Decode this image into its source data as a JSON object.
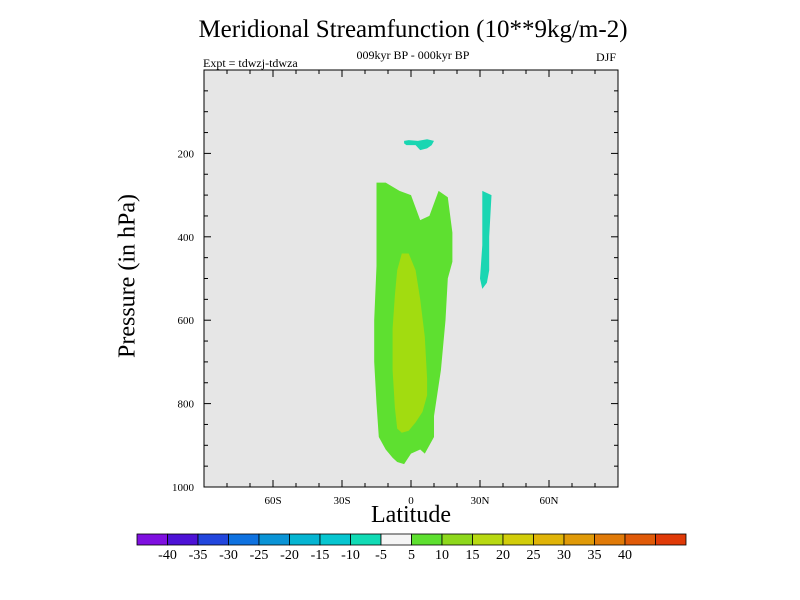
{
  "chart_data": {
    "type": "contour",
    "title": "Meridional Streamfunction (10**9kg/m-2)",
    "subtitle": "009kyr BP - 000kyr BP",
    "left_note": "Expt = tdwzj-tdwza",
    "right_note": "DJF",
    "xlabel": "Latitude",
    "ylabel": "Pressure (in hPa)",
    "xlim": [
      -90,
      90
    ],
    "ylim": [
      1000,
      0
    ],
    "x_ticks": [
      {
        "value": -60,
        "label": "60S"
      },
      {
        "value": -30,
        "label": "30S"
      },
      {
        "value": 0,
        "label": "0"
      },
      {
        "value": 30,
        "label": "30N"
      },
      {
        "value": 60,
        "label": "60N"
      }
    ],
    "y_ticks": [
      {
        "value": 200,
        "label": "200"
      },
      {
        "value": 400,
        "label": "400"
      },
      {
        "value": 600,
        "label": "600"
      },
      {
        "value": 800,
        "label": "800"
      },
      {
        "value": 1000,
        "label": "1000"
      }
    ],
    "background_color": "#e6e6e6",
    "regions": [
      {
        "name": "cell-5-to-10",
        "fill": "#5ee030",
        "points": [
          [
            -15,
            270
          ],
          [
            -11,
            270
          ],
          [
            -5,
            290
          ],
          [
            0,
            300
          ],
          [
            2,
            330
          ],
          [
            4,
            360
          ],
          [
            8,
            350
          ],
          [
            12,
            290
          ],
          [
            16,
            305
          ],
          [
            18,
            390
          ],
          [
            18,
            460
          ],
          [
            16,
            500
          ],
          [
            15,
            600
          ],
          [
            13,
            720
          ],
          [
            10,
            830
          ],
          [
            10,
            880
          ],
          [
            6,
            920
          ],
          [
            4,
            910
          ],
          [
            0,
            920
          ],
          [
            -3,
            945
          ],
          [
            -6,
            940
          ],
          [
            -8,
            930
          ],
          [
            -11,
            910
          ],
          [
            -14,
            880
          ],
          [
            -15,
            800
          ],
          [
            -16,
            700
          ],
          [
            -16,
            600
          ],
          [
            -15,
            470
          ],
          [
            -15,
            370
          ]
        ]
      },
      {
        "name": "cell-10-to-15",
        "fill": "#a2dc10",
        "points": [
          [
            -4,
            440
          ],
          [
            -1,
            440
          ],
          [
            2,
            480
          ],
          [
            4,
            550
          ],
          [
            6,
            640
          ],
          [
            7,
            740
          ],
          [
            7,
            780
          ],
          [
            5,
            820
          ],
          [
            2,
            845
          ],
          [
            -1,
            865
          ],
          [
            -4,
            870
          ],
          [
            -6,
            860
          ],
          [
            -7,
            810
          ],
          [
            -8,
            720
          ],
          [
            -8,
            620
          ],
          [
            -7,
            540
          ],
          [
            -6,
            480
          ]
        ]
      },
      {
        "name": "cell-neg10-to-neg5-upper",
        "fill": "#1ad6b2",
        "points": [
          [
            -3,
            170
          ],
          [
            -1,
            168
          ],
          [
            3,
            170
          ],
          [
            7,
            166
          ],
          [
            10,
            170
          ],
          [
            9,
            180
          ],
          [
            7,
            188
          ],
          [
            4,
            192
          ],
          [
            2,
            180
          ],
          [
            -2,
            180
          ],
          [
            -3,
            176
          ]
        ]
      },
      {
        "name": "cell-neg10-to-neg5-north",
        "fill": "#1ad6b2",
        "points": [
          [
            31,
            290
          ],
          [
            33,
            295
          ],
          [
            35,
            300
          ],
          [
            34,
            400
          ],
          [
            34,
            480
          ],
          [
            33,
            510
          ],
          [
            31,
            525
          ],
          [
            30,
            500
          ],
          [
            31,
            420
          ]
        ]
      }
    ],
    "colorbar": {
      "colors": [
        "#7f10e0",
        "#4d12d6",
        "#2246dd",
        "#0f72e0",
        "#0a94d6",
        "#05b5d2",
        "#07c6d0",
        "#11dbb5",
        "#f5f5f5",
        "#5ee030",
        "#8ed81c",
        "#b8d912",
        "#d2cd0a",
        "#e0b408",
        "#e09a08",
        "#e07a08",
        "#e05a08",
        "#e03a08"
      ],
      "labels": [
        "-40",
        "-35",
        "-30",
        "-25",
        "-20",
        "-15",
        "-10",
        "-5",
        "5",
        "10",
        "15",
        "20",
        "25",
        "30",
        "35",
        "40"
      ]
    }
  }
}
